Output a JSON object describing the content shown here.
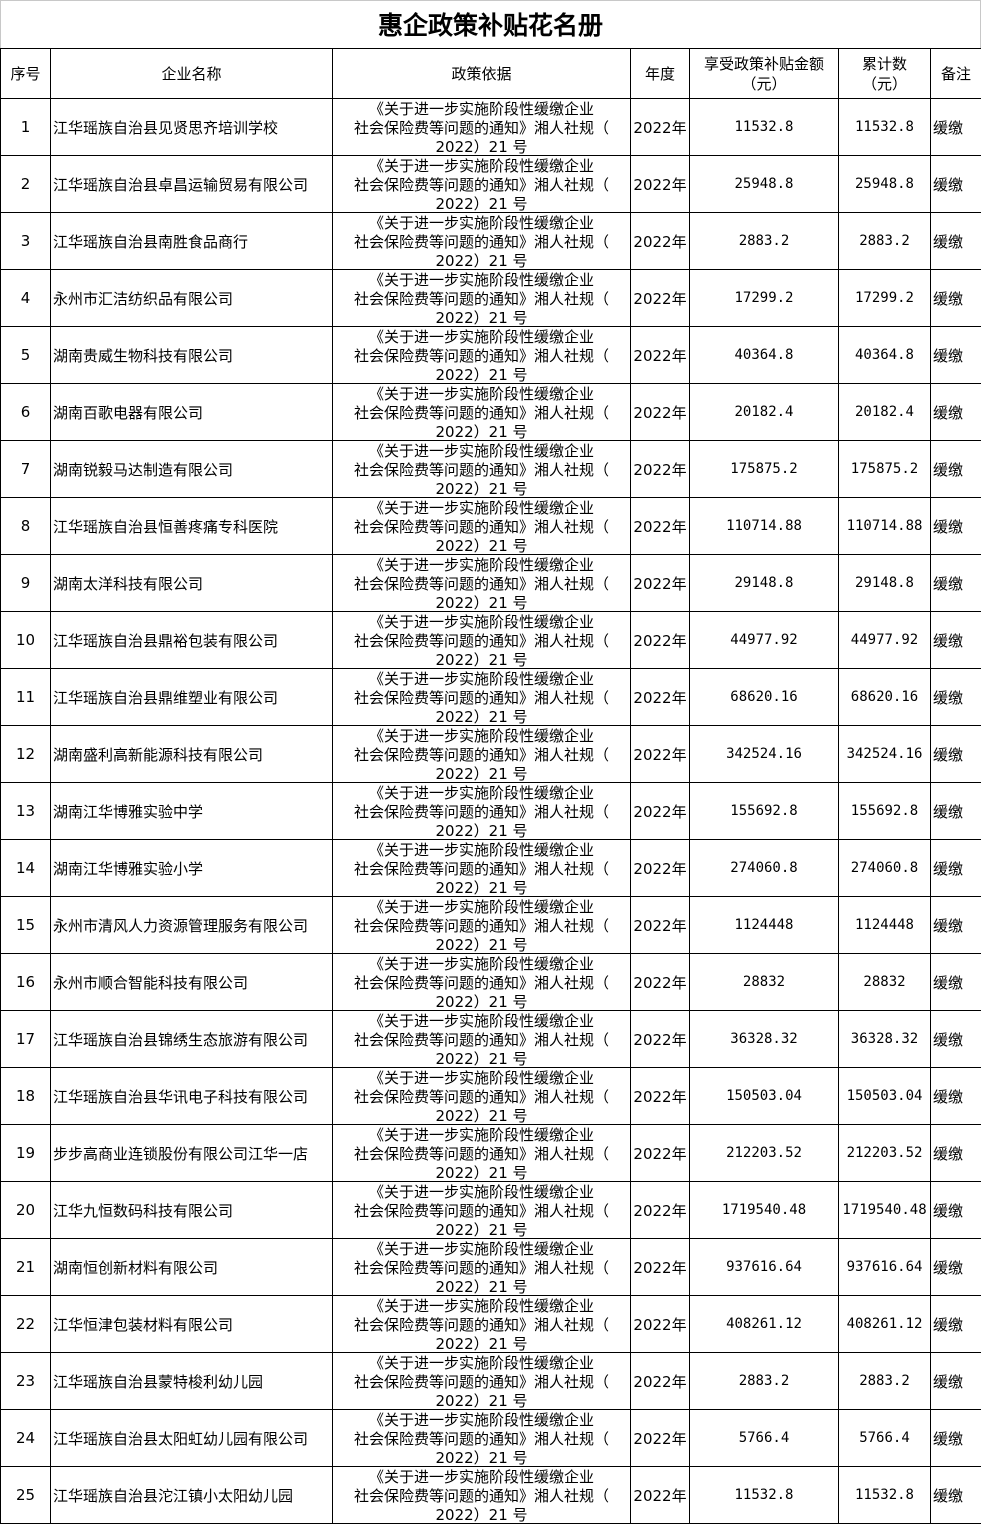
{
  "title": "惠企政策补贴花名册",
  "headers": {
    "seq": "序号",
    "company": "企业名称",
    "policy": "政策依据",
    "year": "年度",
    "amount": "享受政策补贴金额（元）",
    "total": "累计数（元）",
    "note": "备注"
  },
  "rows": [
    {
      "seq": "1",
      "company": "江华瑶族自治县见贤思齐培训学校",
      "amount": "11532.8",
      "total": "11532.8"
    },
    {
      "seq": "2",
      "company": "江华瑶族自治县卓昌运输贸易有限公司",
      "amount": "25948.8",
      "total": "25948.8"
    },
    {
      "seq": "3",
      "company": "江华瑶族自治县南胜食品商行",
      "amount": "2883.2",
      "total": "2883.2"
    },
    {
      "seq": "4",
      "company": "永州市汇洁纺织品有限公司",
      "amount": "17299.2",
      "total": "17299.2"
    },
    {
      "seq": "5",
      "company": "湖南贵威生物科技有限公司",
      "amount": "40364.8",
      "total": "40364.8"
    },
    {
      "seq": "6",
      "company": "湖南百歌电器有限公司",
      "amount": "20182.4",
      "total": "20182.4"
    },
    {
      "seq": "7",
      "company": "湖南锐毅马达制造有限公司",
      "amount": "175875.2",
      "total": "175875.2"
    },
    {
      "seq": "8",
      "company": "江华瑶族自治县恒善疼痛专科医院",
      "amount": "110714.88",
      "total": "110714.88"
    },
    {
      "seq": "9",
      "company": "湖南太洋科技有限公司",
      "amount": "29148.8",
      "total": "29148.8"
    },
    {
      "seq": "10",
      "company": "江华瑶族自治县鼎裕包装有限公司",
      "amount": "44977.92",
      "total": "44977.92"
    },
    {
      "seq": "11",
      "company": "江华瑶族自治县鼎维塑业有限公司",
      "amount": "68620.16",
      "total": "68620.16"
    },
    {
      "seq": "12",
      "company": "湖南盛利高新能源科技有限公司",
      "amount": "342524.16",
      "total": "342524.16"
    },
    {
      "seq": "13",
      "company": "湖南江华博雅实验中学",
      "amount": "155692.8",
      "total": "155692.8"
    },
    {
      "seq": "14",
      "company": "湖南江华博雅实验小学",
      "amount": "274060.8",
      "total": "274060.8"
    },
    {
      "seq": "15",
      "company": "永州市清风人力资源管理服务有限公司",
      "amount": "1124448",
      "total": "1124448"
    },
    {
      "seq": "16",
      "company": "永州市顺合智能科技有限公司",
      "amount": "28832",
      "total": "28832"
    },
    {
      "seq": "17",
      "company": "江华瑶族自治县锦绣生态旅游有限公司",
      "amount": "36328.32",
      "total": "36328.32"
    },
    {
      "seq": "18",
      "company": "江华瑶族自治县华讯电子科技有限公司",
      "amount": "150503.04",
      "total": "150503.04"
    },
    {
      "seq": "19",
      "company": "步步高商业连锁股份有限公司江华一店",
      "amount": "212203.52",
      "total": "212203.52"
    },
    {
      "seq": "20",
      "company": "江华九恒数码科技有限公司",
      "amount": "1719540.48",
      "total": "1719540.48"
    },
    {
      "seq": "21",
      "company": "湖南恒创新材料有限公司",
      "amount": "937616.64",
      "total": "937616.64"
    },
    {
      "seq": "22",
      "company": "江华恒津包装材料有限公司",
      "amount": "408261.12",
      "total": "408261.12"
    },
    {
      "seq": "23",
      "company": "江华瑶族自治县蒙特梭利幼儿园",
      "amount": "2883.2",
      "total": "2883.2"
    },
    {
      "seq": "24",
      "company": "江华瑶族自治县太阳虹幼儿园有限公司",
      "amount": "5766.4",
      "total": "5766.4"
    },
    {
      "seq": "25",
      "company": "江华瑶族自治县沱江镇小太阳幼儿园",
      "amount": "11532.8",
      "total": "11532.8"
    }
  ],
  "common": {
    "policy": "《关于进一步实施阶段性缓缴企业社会保险费等问题的通知》湘人社规（2022）21 号",
    "year": "2022年",
    "note": "缓缴"
  }
}
